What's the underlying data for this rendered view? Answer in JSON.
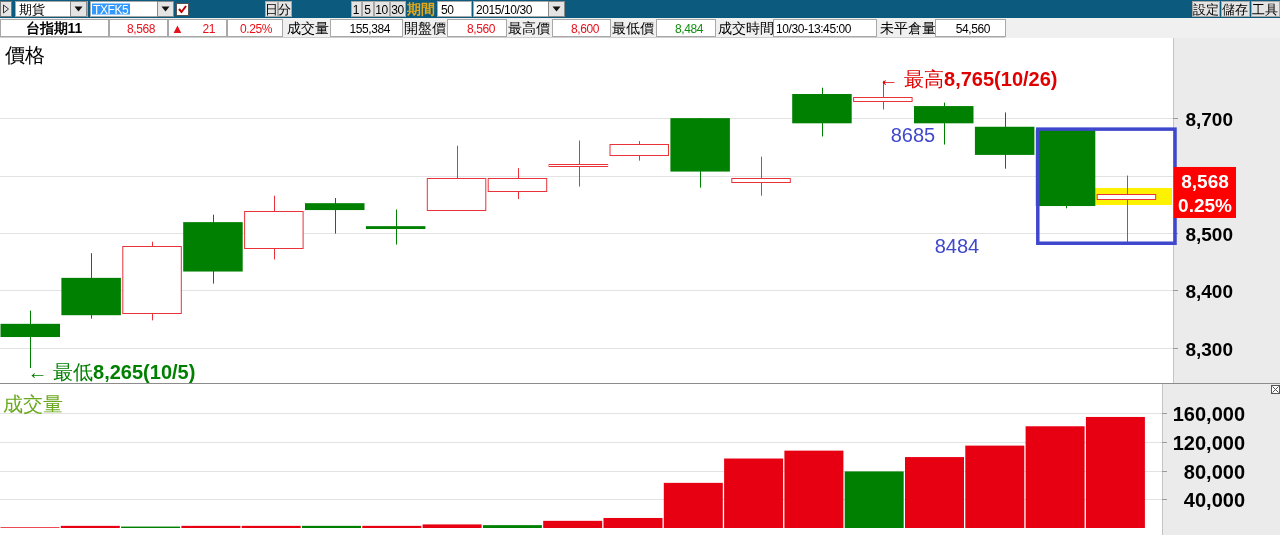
{
  "chart_data": [
    {
      "type": "other",
      "annotations": [
        "期貨",
        "TXFK5",
        "日",
        "分",
        "1",
        "5",
        "10",
        "30",
        "期間",
        "50",
        "2015/10/30",
        "設定",
        "儲存",
        "工具",
        "台指期11",
        "8,568",
        "▲",
        "21",
        "0.25%",
        "成交量",
        "155,384",
        "開盤價",
        "8,560",
        "最高價",
        "8,600",
        "最低價",
        "8,484",
        "成交時間",
        "10/30-13:45:00",
        "未平倉量",
        "54,560"
      ]
    },
    {
      "type": "candlestick",
      "title": "價格",
      "categories": [
        null,
        null,
        null,
        null,
        null,
        null,
        null,
        null,
        null,
        null,
        null,
        null,
        null,
        null,
        null,
        null,
        null,
        null,
        null
      ],
      "ohlc": [
        [
          8342,
          8365,
          8265,
          8319
        ],
        [
          8422,
          8465,
          8351,
          8357
        ],
        [
          8361,
          8485,
          8348,
          8478
        ],
        [
          8519,
          8532,
          8412,
          8433
        ],
        [
          8475,
          8565,
          8454,
          8539
        ],
        [
          8552,
          8561,
          8499,
          8540
        ],
        [
          8512,
          8541,
          8480,
          8507
        ],
        [
          8540,
          8652,
          8540,
          8596
        ],
        [
          8573,
          8613,
          8559,
          8596
        ],
        [
          8617,
          8661,
          8581,
          8620
        ],
        [
          8636,
          8660,
          8626,
          8655
        ],
        [
          8700,
          8700,
          8579,
          8607
        ],
        [
          8588,
          8633,
          8565,
          8595
        ],
        [
          8742,
          8753,
          8668,
          8691
        ],
        [
          8729,
          8765,
          8715,
          8736
        ],
        [
          8721,
          8727,
          8654,
          8691
        ],
        [
          8685,
          8710,
          8612,
          8636
        ],
        [
          8680,
          8680,
          8543,
          8547
        ],
        [
          8560,
          8600,
          8484,
          8568
        ]
      ],
      "colors": [
        "#008000",
        "#008000",
        "#e8333a",
        "#008000",
        "#e8333a",
        "#008000",
        "#008000",
        "#e8333a",
        "#e8333a",
        "#e8333a",
        "#e8333a",
        "#008000",
        "#e8333a",
        "#008000",
        "#e8333a",
        "#008000",
        "#008000",
        "#008000",
        "#e8333a"
      ],
      "ylim": [
        8239,
        8836
      ],
      "yticks": [
        {
          "value": 8300,
          "label": "8,300"
        },
        {
          "value": 8400,
          "label": "8,400"
        },
        {
          "value": 8500,
          "label": "8,500"
        },
        {
          "value": 8600,
          "label": null
        },
        {
          "value": 8700,
          "label": "8,700"
        }
      ],
      "grid": "y",
      "tick_labels": "y",
      "annotations": [
        "← 最高8,765(10/26)",
        "← 最低8,265(10/5)",
        "8685",
        "8484",
        "8,568",
        "0.25%"
      ]
    },
    {
      "type": "bar",
      "title": "成交量",
      "categories": [
        null,
        null,
        null,
        null,
        null,
        null,
        null,
        null,
        null,
        null,
        null,
        null,
        null,
        null,
        null,
        null,
        null,
        null,
        null
      ],
      "values": [
        1000,
        3000,
        2000,
        3000,
        3000,
        3000,
        3000,
        5000,
        4000,
        10000,
        14000,
        63000,
        97000,
        108000,
        79000,
        99000,
        115000,
        142000,
        155000
      ],
      "colors": [
        "#e60012",
        "#e60012",
        "#008000",
        "#e60012",
        "#e60012",
        "#008000",
        "#e60012",
        "#e60012",
        "#008000",
        "#e60012",
        "#e60012",
        "#e60012",
        "#e60012",
        "#e60012",
        "#008000",
        "#e60012",
        "#e60012",
        "#e60012",
        "#e60012"
      ],
      "ylim": [
        0,
        201000
      ],
      "yticks": [
        {
          "value": 40000,
          "label": "40,000"
        },
        {
          "value": 80000,
          "label": "80,000"
        },
        {
          "value": 120000,
          "label": "120,000"
        },
        {
          "value": 160000,
          "label": "160,000"
        }
      ],
      "grid": "y",
      "tick_labels": "y"
    }
  ]
}
